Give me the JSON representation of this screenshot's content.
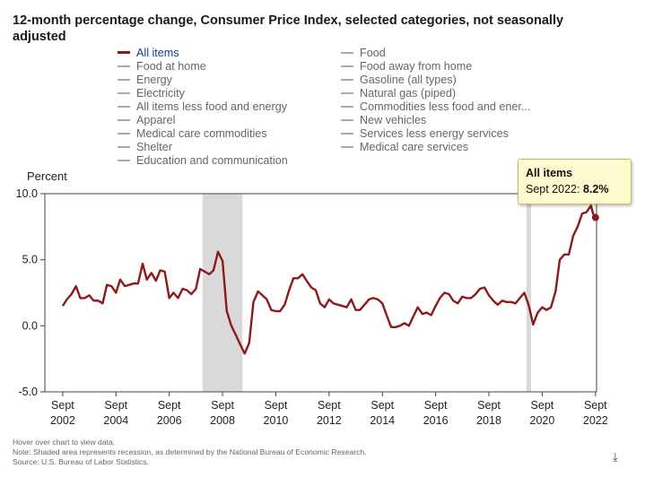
{
  "title": "12-month percentage change, Consumer Price Index, selected categories, not seasonally adjusted",
  "legend": {
    "items": [
      {
        "label": "All items",
        "active": true
      },
      {
        "label": "Food",
        "active": false
      },
      {
        "label": "Food at home",
        "active": false
      },
      {
        "label": "Food away from home",
        "active": false
      },
      {
        "label": "Energy",
        "active": false
      },
      {
        "label": "Gasoline (all types)",
        "active": false
      },
      {
        "label": "Electricity",
        "active": false
      },
      {
        "label": "Natural gas (piped)",
        "active": false
      },
      {
        "label": "All items less food and energy",
        "active": false
      },
      {
        "label": "Commodities less food and ener...",
        "active": false
      },
      {
        "label": "Apparel",
        "active": false
      },
      {
        "label": "New vehicles",
        "active": false
      },
      {
        "label": "Medical care commodities",
        "active": false
      },
      {
        "label": "Services less energy services",
        "active": false
      },
      {
        "label": "Shelter",
        "active": false
      },
      {
        "label": "Medical care services",
        "active": false
      },
      {
        "label": "Education and communication",
        "active": false
      }
    ]
  },
  "tooltip": {
    "series": "All items",
    "date": "Sept 2022:",
    "value": "8.2%"
  },
  "notes": {
    "hover": "Hover over chart to view data.",
    "note": "Note: Shaded area represents recession, as determined by the National Bureau of Economic Research.",
    "source": "Source: U.S. Bureau of Labor Statistics."
  },
  "colors": {
    "line": "#8b1a1a",
    "recession": "#d9d9d9",
    "legend_active_text": "#1b3a8c",
    "tooltip_bg": "#fffbd0"
  },
  "chart_data": {
    "type": "line",
    "ylabel": "Percent",
    "ylim": [
      -5.0,
      10.0
    ],
    "yticks": [
      "10.0",
      "5.0",
      "0.0",
      "-5.0"
    ],
    "ytick_values": [
      10,
      5,
      0,
      -5
    ],
    "xlim": [
      2002.0,
      2022.71
    ],
    "xticks": [
      {
        "value": 2002.67,
        "line1": "Sept",
        "line2": "2002"
      },
      {
        "value": 2004.67,
        "line1": "Sept",
        "line2": "2004"
      },
      {
        "value": 2006.67,
        "line1": "Sept",
        "line2": "2006"
      },
      {
        "value": 2008.67,
        "line1": "Sept",
        "line2": "2008"
      },
      {
        "value": 2010.67,
        "line1": "Sept",
        "line2": "2010"
      },
      {
        "value": 2012.67,
        "line1": "Sept",
        "line2": "2012"
      },
      {
        "value": 2014.67,
        "line1": "Sept",
        "line2": "2014"
      },
      {
        "value": 2016.67,
        "line1": "Sept",
        "line2": "2016"
      },
      {
        "value": 2018.67,
        "line1": "Sept",
        "line2": "2018"
      },
      {
        "value": 2020.67,
        "line1": "Sept",
        "line2": "2020"
      },
      {
        "value": 2022.67,
        "line1": "Sept",
        "line2": "2022"
      }
    ],
    "recessions": [
      [
        2007.92,
        2009.42
      ],
      [
        2020.08,
        2020.25
      ]
    ],
    "grid": false,
    "series": [
      {
        "name": "All items",
        "points": [
          [
            2002.67,
            1.5
          ],
          [
            2002.83,
            2.0
          ],
          [
            2003.0,
            2.4
          ],
          [
            2003.17,
            3.0
          ],
          [
            2003.33,
            2.1
          ],
          [
            2003.5,
            2.1
          ],
          [
            2003.67,
            2.3
          ],
          [
            2003.83,
            1.9
          ],
          [
            2004.0,
            1.9
          ],
          [
            2004.17,
            1.7
          ],
          [
            2004.33,
            3.1
          ],
          [
            2004.5,
            3.0
          ],
          [
            2004.67,
            2.5
          ],
          [
            2004.83,
            3.5
          ],
          [
            2005.0,
            3.0
          ],
          [
            2005.17,
            3.1
          ],
          [
            2005.33,
            3.2
          ],
          [
            2005.5,
            3.2
          ],
          [
            2005.67,
            4.7
          ],
          [
            2005.83,
            3.5
          ],
          [
            2006.0,
            4.0
          ],
          [
            2006.17,
            3.4
          ],
          [
            2006.33,
            4.2
          ],
          [
            2006.5,
            4.1
          ],
          [
            2006.67,
            2.1
          ],
          [
            2006.83,
            2.5
          ],
          [
            2007.0,
            2.1
          ],
          [
            2007.17,
            2.8
          ],
          [
            2007.33,
            2.7
          ],
          [
            2007.5,
            2.4
          ],
          [
            2007.67,
            2.8
          ],
          [
            2007.83,
            4.3
          ],
          [
            2008.0,
            4.1
          ],
          [
            2008.17,
            3.9
          ],
          [
            2008.33,
            4.2
          ],
          [
            2008.5,
            5.6
          ],
          [
            2008.67,
            4.9
          ],
          [
            2008.83,
            1.1
          ],
          [
            2009.0,
            0.0
          ],
          [
            2009.17,
            -0.7
          ],
          [
            2009.33,
            -1.4
          ],
          [
            2009.5,
            -2.1
          ],
          [
            2009.67,
            -1.3
          ],
          [
            2009.83,
            1.8
          ],
          [
            2010.0,
            2.6
          ],
          [
            2010.17,
            2.3
          ],
          [
            2010.33,
            2.0
          ],
          [
            2010.5,
            1.2
          ],
          [
            2010.67,
            1.1
          ],
          [
            2010.83,
            1.1
          ],
          [
            2011.0,
            1.6
          ],
          [
            2011.17,
            2.7
          ],
          [
            2011.33,
            3.6
          ],
          [
            2011.5,
            3.6
          ],
          [
            2011.67,
            3.9
          ],
          [
            2011.83,
            3.4
          ],
          [
            2012.0,
            2.9
          ],
          [
            2012.17,
            2.7
          ],
          [
            2012.33,
            1.7
          ],
          [
            2012.5,
            1.4
          ],
          [
            2012.67,
            2.0
          ],
          [
            2012.83,
            1.7
          ],
          [
            2013.0,
            1.6
          ],
          [
            2013.17,
            1.5
          ],
          [
            2013.33,
            1.4
          ],
          [
            2013.5,
            2.0
          ],
          [
            2013.67,
            1.2
          ],
          [
            2013.83,
            1.2
          ],
          [
            2014.0,
            1.6
          ],
          [
            2014.17,
            2.0
          ],
          [
            2014.33,
            2.1
          ],
          [
            2014.5,
            2.0
          ],
          [
            2014.67,
            1.7
          ],
          [
            2014.83,
            0.8
          ],
          [
            2015.0,
            -0.1
          ],
          [
            2015.17,
            -0.1
          ],
          [
            2015.33,
            0.0
          ],
          [
            2015.5,
            0.2
          ],
          [
            2015.67,
            0.0
          ],
          [
            2015.83,
            0.7
          ],
          [
            2016.0,
            1.4
          ],
          [
            2016.17,
            0.9
          ],
          [
            2016.33,
            1.0
          ],
          [
            2016.5,
            0.8
          ],
          [
            2016.67,
            1.5
          ],
          [
            2016.83,
            2.1
          ],
          [
            2017.0,
            2.5
          ],
          [
            2017.17,
            2.4
          ],
          [
            2017.33,
            1.9
          ],
          [
            2017.5,
            1.7
          ],
          [
            2017.67,
            2.2
          ],
          [
            2017.83,
            2.1
          ],
          [
            2018.0,
            2.1
          ],
          [
            2018.17,
            2.4
          ],
          [
            2018.33,
            2.8
          ],
          [
            2018.5,
            2.9
          ],
          [
            2018.67,
            2.3
          ],
          [
            2018.83,
            1.9
          ],
          [
            2019.0,
            1.6
          ],
          [
            2019.17,
            1.9
          ],
          [
            2019.33,
            1.8
          ],
          [
            2019.5,
            1.8
          ],
          [
            2019.67,
            1.7
          ],
          [
            2019.83,
            2.1
          ],
          [
            2020.0,
            2.5
          ],
          [
            2020.17,
            1.5
          ],
          [
            2020.33,
            0.1
          ],
          [
            2020.5,
            1.0
          ],
          [
            2020.67,
            1.4
          ],
          [
            2020.83,
            1.2
          ],
          [
            2021.0,
            1.4
          ],
          [
            2021.17,
            2.6
          ],
          [
            2021.33,
            5.0
          ],
          [
            2021.5,
            5.4
          ],
          [
            2021.67,
            5.4
          ],
          [
            2021.83,
            6.8
          ],
          [
            2022.0,
            7.5
          ],
          [
            2022.17,
            8.5
          ],
          [
            2022.33,
            8.6
          ],
          [
            2022.5,
            9.1
          ],
          [
            2022.58,
            8.5
          ],
          [
            2022.67,
            8.2
          ]
        ]
      }
    ]
  }
}
